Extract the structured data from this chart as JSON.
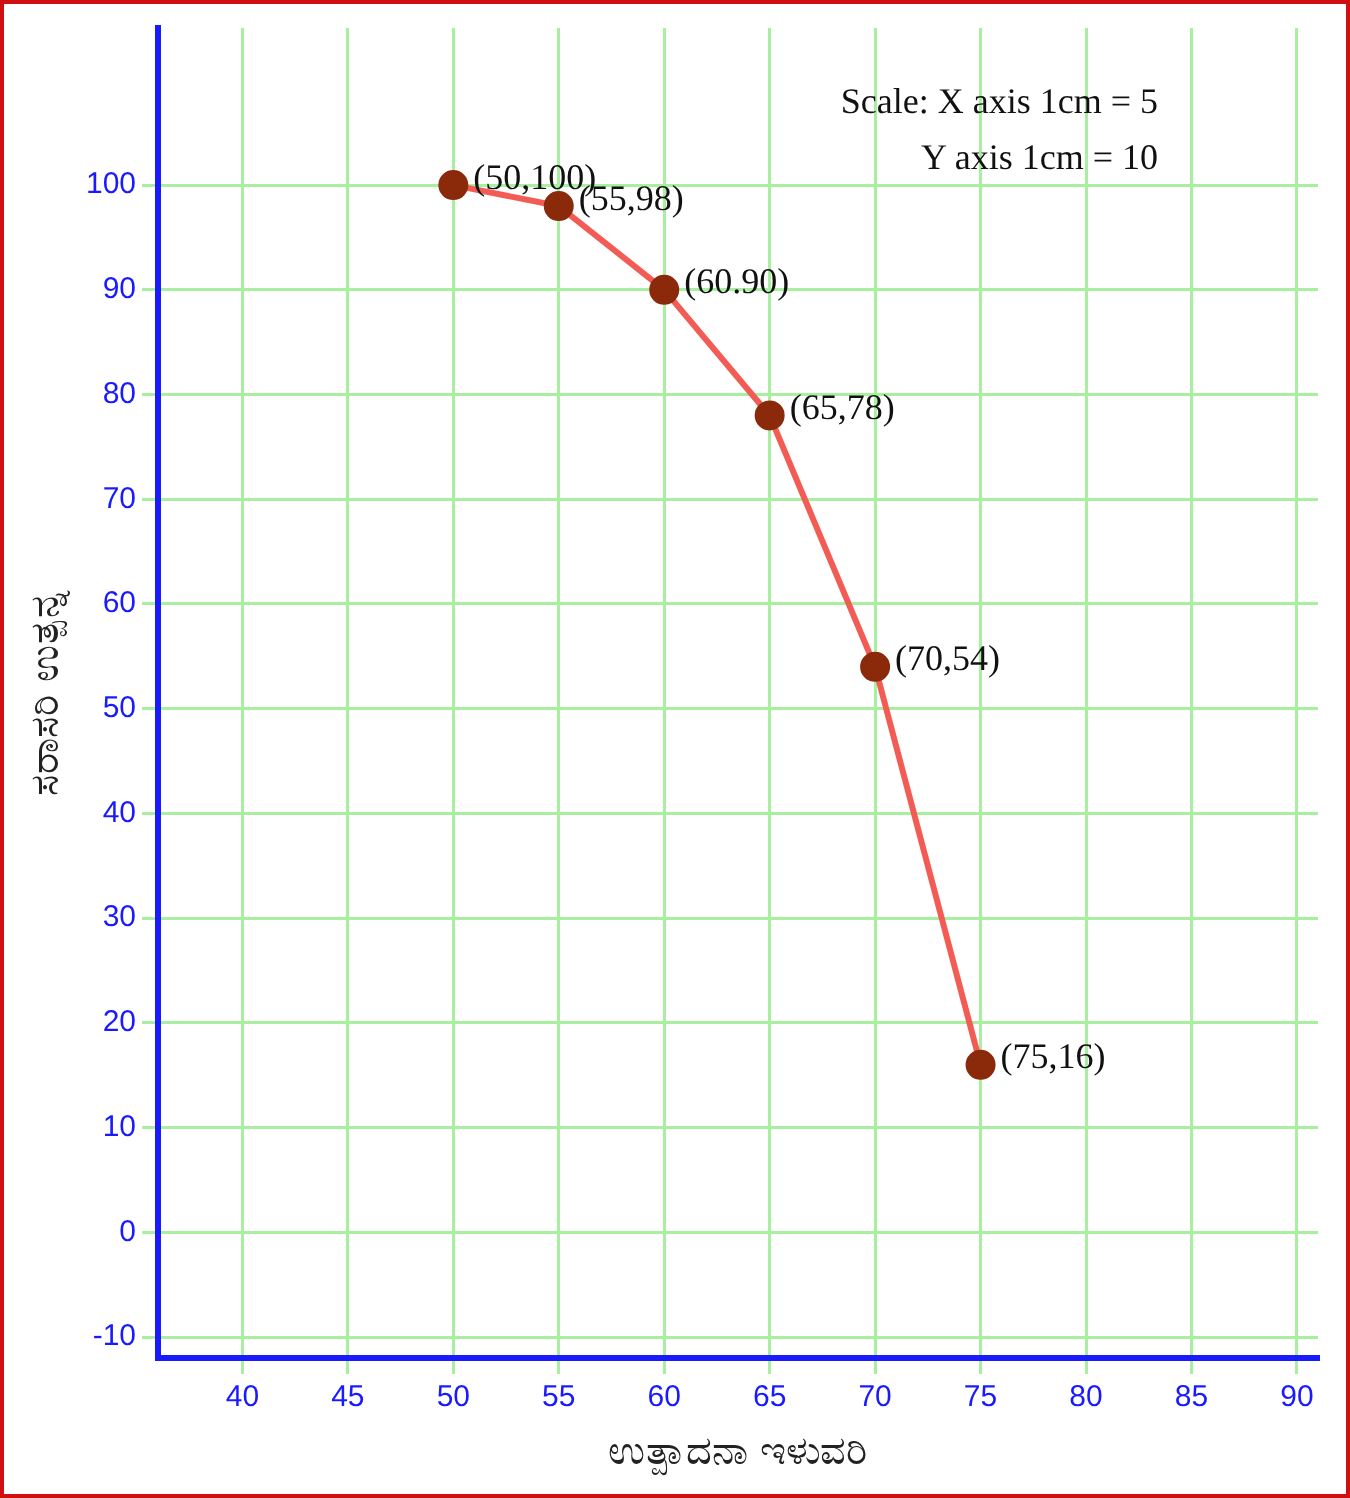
{
  "chart_data": {
    "type": "line",
    "xlabel": "ಉತ್ಪಾದನಾ ಇಳುವರಿ",
    "ylabel": "ಸರಾಸರಿ ಉತ್ಪನ್ನ",
    "annotations": [
      "Scale: X axis 1cm = 5",
      "Y axis 1cm = 10",
      {
        "text": "(50,100)",
        "x": 50,
        "y": 100
      },
      {
        "text": "(55,98)",
        "x": 55,
        "y": 98
      },
      {
        "text": "(60.90)",
        "x": 60,
        "y": 90
      },
      {
        "text": "(65,78)",
        "x": 65,
        "y": 78
      },
      {
        "text": "(70,54)",
        "x": 70,
        "y": 54
      },
      {
        "text": "(75,16)",
        "x": 75,
        "y": 16
      }
    ],
    "series": [
      {
        "color": "#f25c54",
        "x": [
          50,
          55,
          60,
          65,
          70,
          75
        ],
        "values": [
          100,
          98,
          90,
          78,
          54,
          16
        ],
        "colors": [
          "#8b2a0a",
          "#8b2a0a",
          "#8b2a0a",
          "#8b2a0a",
          "#8b2a0a",
          "#8b2a0a"
        ]
      }
    ],
    "xlim": [
      36,
      91
    ],
    "xticks": [
      40,
      45,
      50,
      55,
      60,
      65,
      70,
      75,
      80,
      85,
      90
    ],
    "ylim": [
      -12,
      115
    ],
    "yticks": [
      -10,
      0,
      10,
      20,
      30,
      40,
      50,
      60,
      70,
      80,
      90,
      100
    ],
    "grid": true,
    "legend": false,
    "marker": "circle",
    "line_style": "solid"
  }
}
